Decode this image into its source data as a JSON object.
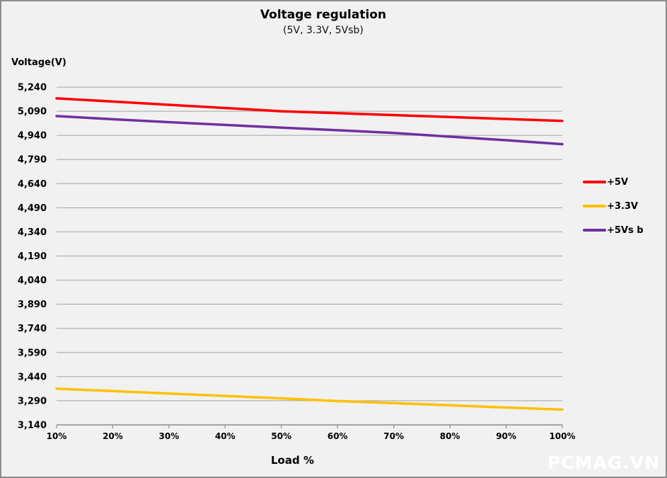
{
  "watermark": {
    "text": "PCMAG.VN"
  },
  "chart_data": {
    "type": "line",
    "title": "Voltage regulation",
    "subtitle": "(5V, 3.3V, 5Vsb)",
    "xlabel": "Load %",
    "ylabel": "Voltage(V)",
    "x": [
      "10%",
      "20%",
      "30%",
      "40%",
      "50%",
      "60%",
      "70%",
      "80%",
      "90%",
      "100%"
    ],
    "x_values": [
      10,
      20,
      30,
      40,
      50,
      60,
      70,
      80,
      90,
      100
    ],
    "ylim": [
      3140,
      5240
    ],
    "ytick_step": 150,
    "yticks": [
      5240,
      5090,
      4940,
      4790,
      4640,
      4490,
      4340,
      4190,
      4040,
      3890,
      3740,
      3590,
      3440,
      3290,
      3140
    ],
    "ytick_labels": [
      "5,240",
      "5,090",
      "4,940",
      "4,790",
      "4,640",
      "4,490",
      "4,340",
      "4,190",
      "4,040",
      "3,890",
      "3,740",
      "3,590",
      "3,440",
      "3,290",
      "3,140"
    ],
    "grid": true,
    "legend_position": "right",
    "colors": {
      "grid": "#a3a3a3",
      "axis": "#8c8c8c",
      "background": "#f1f1f2",
      "border": "#8c8c8c"
    },
    "series": [
      {
        "name": "+5V",
        "color": "#fe0000",
        "values": [
          5170,
          5150,
          5130,
          5110,
          5090,
          5078,
          5066,
          5054,
          5042,
          5030
        ]
      },
      {
        "name": "+3.3V",
        "color": "#ffc000",
        "values": [
          3365,
          3350,
          3335,
          3320,
          3305,
          3288,
          3275,
          3262,
          3248,
          3235
        ]
      },
      {
        "name": "+5Vs b",
        "color": "#7030a0",
        "values": [
          5060,
          5040,
          5022,
          5005,
          4988,
          4972,
          4955,
          4932,
          4910,
          4885
        ]
      }
    ]
  }
}
